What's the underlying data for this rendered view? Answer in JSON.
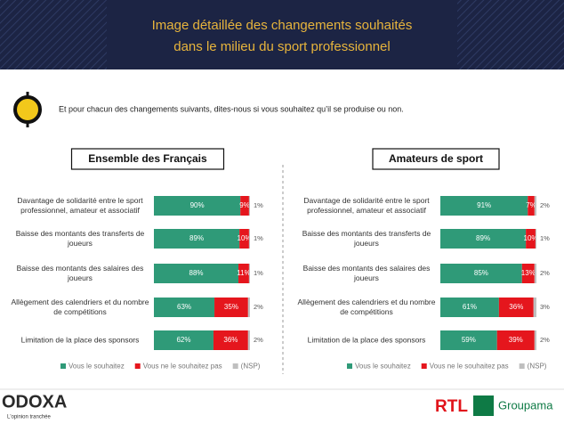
{
  "header": {
    "title_lines": [
      "Image détaillée des changements souhaités",
      "dans le milieu du sport professionnel"
    ]
  },
  "question": "Et pour chacun des changements suivants, dites-nous si vous souhaitez qu’il se produise ou non.",
  "footer": {
    "brand": "ODOXA",
    "tagline": "L'opinion tranchée",
    "partners": [
      "RTL",
      "Groupama"
    ]
  },
  "chart_data": [
    {
      "type": "bar",
      "orientation": "horizontal",
      "stacked": true,
      "title": "Ensemble des Français",
      "categories": [
        "Davantage de solidarité entre le sport professionnel, amateur et associatif",
        "Baisse des montants des transferts de joueurs",
        "Baisse des montants des salaires des joueurs",
        "Allègement des calendriers et du nombre de compétitions",
        "Limitation de la place des sponsors"
      ],
      "xlim": [
        0,
        100
      ],
      "legend": "bottom",
      "series": [
        {
          "name": "Vous le souhaitez",
          "color": "#2f9a78",
          "values": [
            90,
            89,
            88,
            63,
            62
          ],
          "value_labels": [
            "90%",
            "89%",
            "88%",
            "63%",
            "62%"
          ]
        },
        {
          "name": "Vous ne le souhaitez pas",
          "color": "#e5161d",
          "values": [
            9,
            10,
            11,
            35,
            36
          ],
          "value_labels": [
            "9%",
            "10%",
            "11%",
            "35%",
            "36%"
          ]
        },
        {
          "name": "(NSP)",
          "color": "#bfbfbf",
          "values": [
            1,
            1,
            1,
            2,
            2
          ],
          "value_labels": [
            "1%",
            "1%",
            "1%",
            "2%",
            "2%"
          ]
        }
      ]
    },
    {
      "type": "bar",
      "orientation": "horizontal",
      "stacked": true,
      "title": "Amateurs de sport",
      "categories": [
        "Davantage de solidarité entre le sport professionnel, amateur et associatif",
        "Baisse des montants des transferts de joueurs",
        "Baisse des montants des salaires des joueurs",
        "Allègement des calendriers et du nombre de compétitions",
        "Limitation de la place des sponsors"
      ],
      "xlim": [
        0,
        100
      ],
      "legend": "bottom",
      "series": [
        {
          "name": "Vous le souhaitez",
          "color": "#2f9a78",
          "values": [
            91,
            89,
            85,
            61,
            59
          ],
          "value_labels": [
            "91%",
            "89%",
            "85%",
            "61%",
            "59%"
          ]
        },
        {
          "name": "Vous ne le souhaitez pas",
          "color": "#e5161d",
          "values": [
            7,
            10,
            13,
            36,
            39
          ],
          "value_labels": [
            "7%",
            "10%",
            "13%",
            "36%",
            "39%"
          ]
        },
        {
          "name": "(NSP)",
          "color": "#bfbfbf",
          "values": [
            2,
            1,
            2,
            3,
            2
          ],
          "value_labels": [
            "2%",
            "1%",
            "2%",
            "3%",
            "2%"
          ]
        }
      ]
    }
  ]
}
